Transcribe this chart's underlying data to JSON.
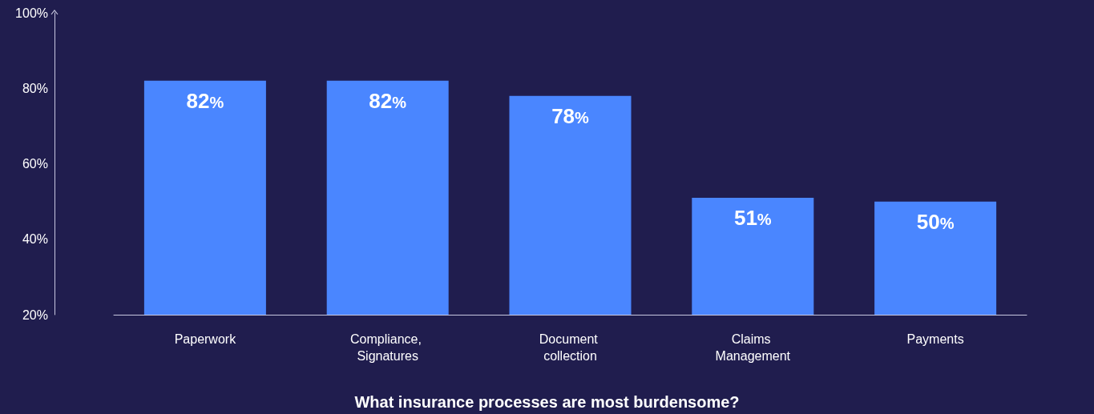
{
  "chart_data": {
    "type": "bar",
    "title": "What insurance processes are most burdensome?",
    "categories": [
      "Paperwork",
      "Compliance, Signatures",
      "Document collection",
      "Claims Management",
      "Payments"
    ],
    "values": [
      82,
      82,
      78,
      51,
      50
    ],
    "color": "#4a86ff",
    "value_labels": [
      "82%",
      "82%",
      "78%",
      "51%",
      "50%"
    ],
    "ylim": [
      20,
      100
    ],
    "yticks": [
      {
        "value": 20,
        "label": "20%"
      },
      {
        "value": 40,
        "label": "40%"
      },
      {
        "value": 60,
        "label": "60%"
      },
      {
        "value": 80,
        "label": "80%"
      },
      {
        "value": 100,
        "label": "100%"
      }
    ],
    "grid": false
  }
}
